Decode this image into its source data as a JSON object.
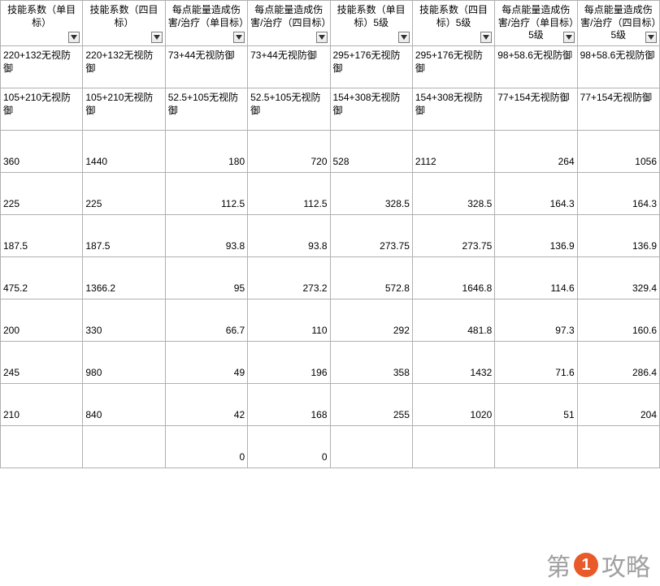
{
  "headers": [
    "技能系数（单目标）",
    "技能系数（四目标）",
    "每点能量造成伤害/治疗（单目标）",
    "每点能量造成伤害/治疗（四目标）",
    "技能系数（单目标）5级",
    "技能系数（四目标）5级",
    "每点能量造成伤害/治疗（单目标）5级",
    "每点能量造成伤害/治疗（四目标）5级"
  ],
  "rows": [
    {
      "type": "text",
      "cells": [
        "220+132无视防御",
        "220+132无视防御",
        "73+44无视防御",
        "73+44无视防御",
        "295+176无视防御",
        "295+176无视防御",
        "98+58.6无视防御",
        "98+58.6无视防御"
      ]
    },
    {
      "type": "text",
      "cells": [
        "105+210无视防御",
        "105+210无视防御",
        "52.5+105无视防御",
        "52.5+105无视防御",
        "154+308无视防御",
        "154+308无视防御",
        "77+154无视防御",
        "77+154无视防御"
      ]
    },
    {
      "type": "num",
      "tall": "tall2",
      "cells": [
        "360",
        "1440",
        "180",
        "720",
        "528",
        "2112",
        "264",
        "1056"
      ],
      "align": [
        "l",
        "l",
        "r",
        "r",
        "l",
        "l",
        "r",
        "r"
      ]
    },
    {
      "type": "num",
      "cells": [
        "225",
        "225",
        "112.5",
        "112.5",
        "328.5",
        "328.5",
        "164.3",
        "164.3"
      ],
      "align": [
        "l",
        "l",
        "r",
        "r",
        "r",
        "r",
        "r",
        "r"
      ]
    },
    {
      "type": "num",
      "cells": [
        "187.5",
        "187.5",
        "93.8",
        "93.8",
        "273.75",
        "273.75",
        "136.9",
        "136.9"
      ],
      "align": [
        "l",
        "l",
        "r",
        "r",
        "r",
        "r",
        "r",
        "r"
      ]
    },
    {
      "type": "num",
      "cells": [
        "475.2",
        "1366.2",
        "95",
        "273.2",
        "572.8",
        "1646.8",
        "114.6",
        "329.4"
      ],
      "align": [
        "l",
        "l",
        "r",
        "r",
        "r",
        "r",
        "r",
        "r"
      ]
    },
    {
      "type": "num",
      "cells": [
        "200",
        "330",
        "66.7",
        "110",
        "292",
        "481.8",
        "97.3",
        "160.6"
      ],
      "align": [
        "l",
        "l",
        "r",
        "r",
        "r",
        "r",
        "r",
        "r"
      ]
    },
    {
      "type": "num",
      "cells": [
        "245",
        "980",
        "49",
        "196",
        "358",
        "1432",
        "71.6",
        "286.4"
      ],
      "align": [
        "l",
        "l",
        "r",
        "r",
        "r",
        "r",
        "r",
        "r"
      ]
    },
    {
      "type": "num",
      "tall": "tall",
      "cells": [
        "210",
        "840",
        "42",
        "168",
        "255",
        "1020",
        "51",
        "204"
      ],
      "align": [
        "l",
        "l",
        "r",
        "r",
        "r",
        "r",
        "r",
        "r"
      ]
    },
    {
      "type": "num",
      "cells": [
        "",
        "",
        "0",
        "0",
        "",
        "",
        "",
        ""
      ],
      "align": [
        "l",
        "l",
        "r",
        "r",
        "r",
        "r",
        "r",
        "r"
      ]
    }
  ],
  "watermark": {
    "before": "第",
    "num": "1",
    "after": "攻略"
  },
  "colors": {
    "border": "#b0b0b0",
    "watermark_circle": "#e85a2a",
    "watermark_text": "#a0a0a0"
  }
}
